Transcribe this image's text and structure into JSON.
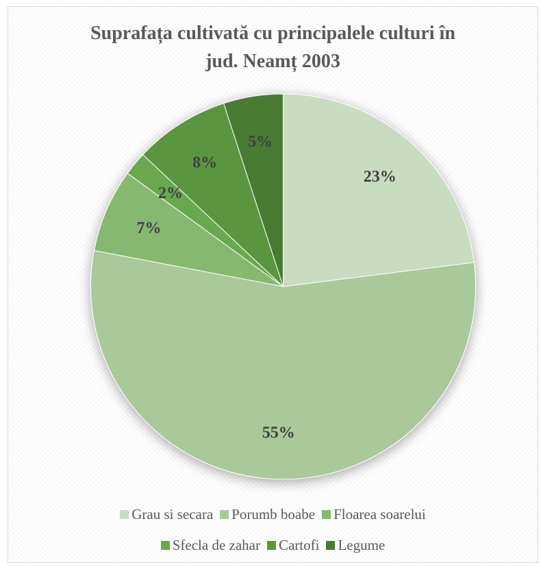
{
  "chart_data": {
    "type": "pie",
    "title_lines": [
      "Suprafața cultivată cu principalele culturi în",
      "jud. Neamț 2003"
    ],
    "categories": [
      "Grau si secara",
      "Porumb boabe",
      "Floarea soarelui",
      "Sfecla de zahar",
      "Cartofi",
      "Legume"
    ],
    "values": [
      23,
      55,
      7,
      2,
      8,
      5
    ],
    "data_labels": [
      "23%",
      "55%",
      "7%",
      "2%",
      "8%",
      "5%"
    ],
    "colors": [
      "#c8dcc0",
      "#a9c99b",
      "#86b86f",
      "#6aa84f",
      "#5a963f",
      "#4a7c33"
    ],
    "start_angle_deg": 0,
    "direction": "clockwise",
    "legend_position": "bottom"
  }
}
